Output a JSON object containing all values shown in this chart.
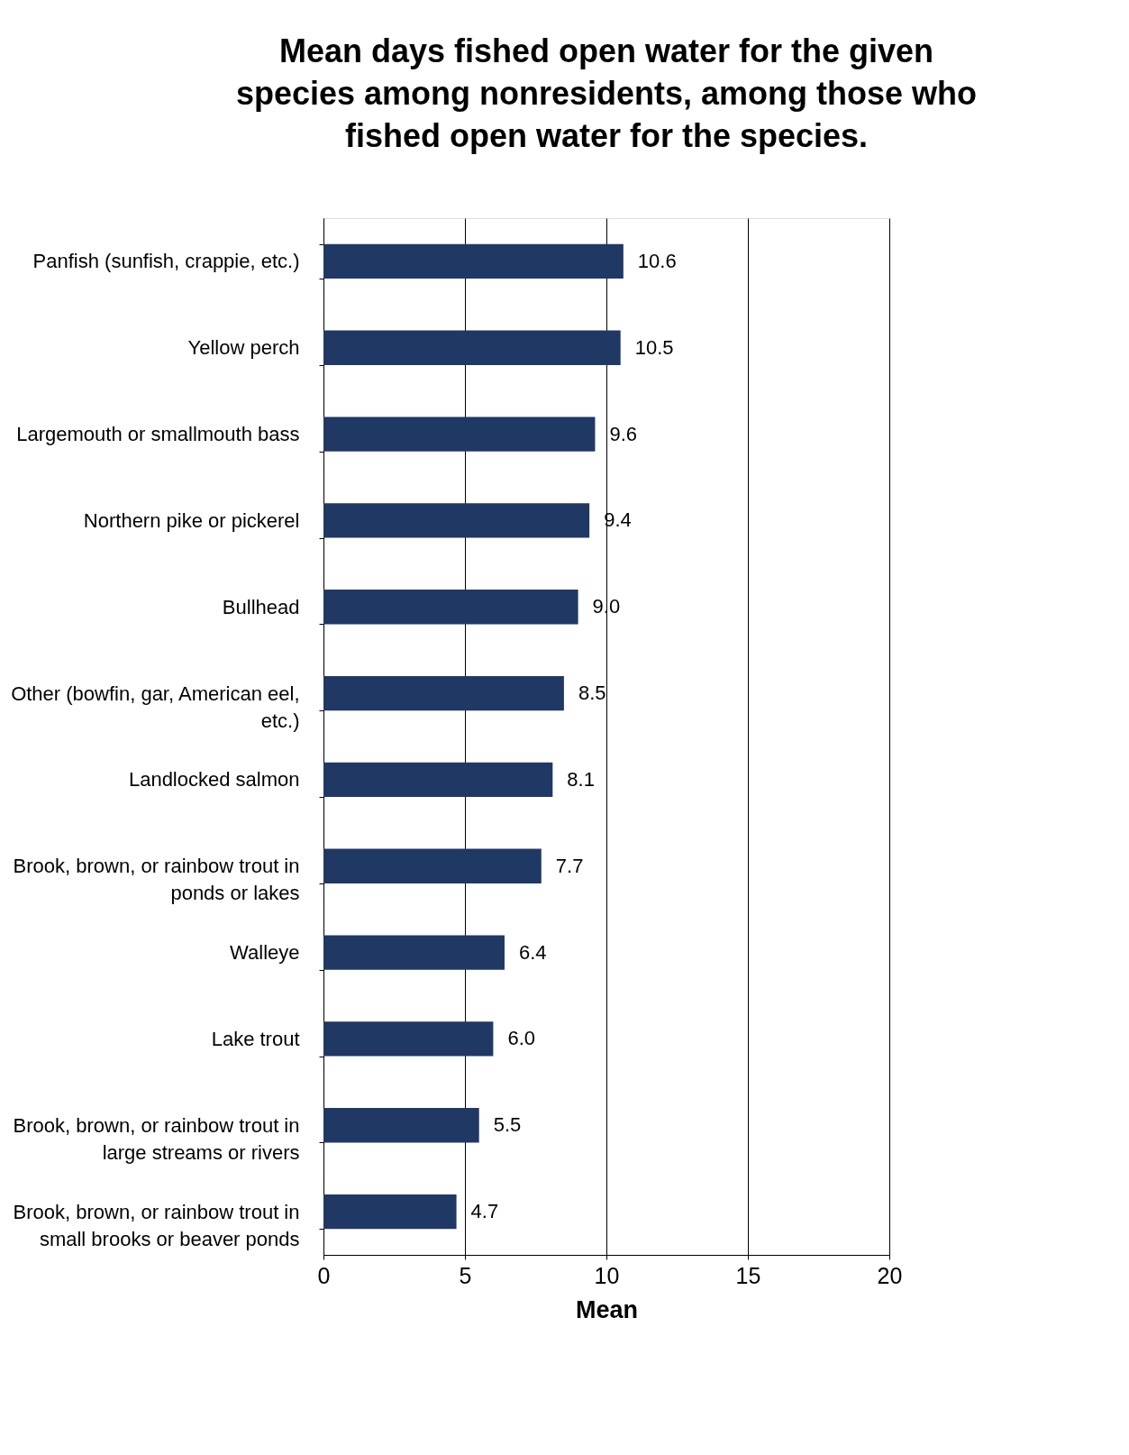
{
  "chart_data": {
    "type": "bar",
    "orientation": "horizontal",
    "title": "Mean days fished open water for the given species among nonresidents, among those who fished open water for the species.",
    "xlabel": "Mean",
    "categories": [
      "Panfish (sunfish, crappie, etc.)",
      "Yellow perch",
      "Largemouth or smallmouth bass",
      "Northern pike or pickerel",
      "Bullhead",
      "Other (bowfin, gar, American eel, etc.)",
      "Landlocked salmon",
      "Brook, brown, or rainbow trout in ponds or lakes",
      "Walleye",
      "Lake trout",
      "Brook, brown, or rainbow trout in large streams or rivers",
      "Brook, brown, or rainbow trout in small brooks or beaver ponds"
    ],
    "values": [
      10.6,
      10.5,
      9.6,
      9.4,
      9.0,
      8.5,
      8.1,
      7.7,
      6.4,
      6.0,
      5.5,
      4.7
    ],
    "value_labels": [
      "10.6",
      "10.5",
      "9.6",
      "9.4",
      "9.0",
      "8.5",
      "8.1",
      "7.7",
      "6.4",
      "6.0",
      "5.5",
      "4.7"
    ],
    "color": "#203864",
    "xlim": [
      0,
      20
    ],
    "xticks": [
      0,
      5,
      10,
      15,
      20
    ],
    "grid": "x"
  }
}
